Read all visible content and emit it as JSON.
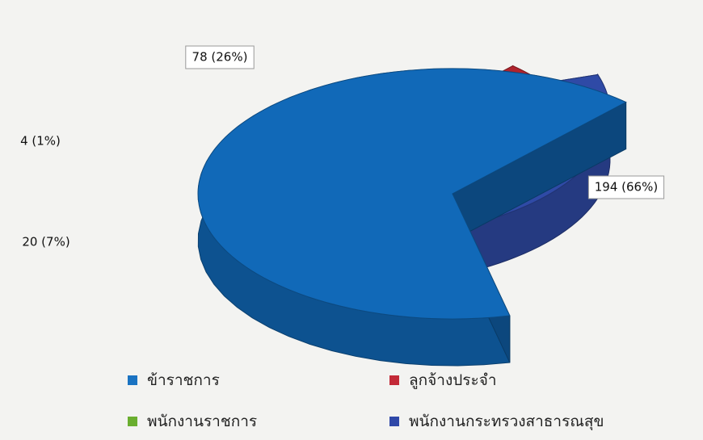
{
  "chart_data": {
    "type": "pie",
    "title": "",
    "categories": [
      "ข้าราชการ",
      "ลูกจ้างประจำ",
      "พนักงานราชการ",
      "พนักงานกระทรวงสาธารณสุข"
    ],
    "values": [
      194,
      20,
      4,
      78
    ],
    "labels": [
      "194 (66%)",
      "20 (7%)",
      "4 (1%)",
      "78 (26%)"
    ],
    "exploded": [
      true,
      true,
      true,
      true
    ],
    "legend": "bottom",
    "colors": [
      "#1169b8",
      "#b0232d",
      "#6aae2f",
      "#2f4aa6"
    ]
  },
  "legend_items": [
    {
      "label": "ข้าราชการ",
      "color": "#1a73c2"
    },
    {
      "label": "ลูกจ้างประจำ",
      "color": "#c32a38"
    },
    {
      "label": "พนักงานราชการ",
      "color": "#6aae2f"
    },
    {
      "label": "พนักงานกระทรวงสาธารณสุข",
      "color": "#2f48a8"
    }
  ]
}
